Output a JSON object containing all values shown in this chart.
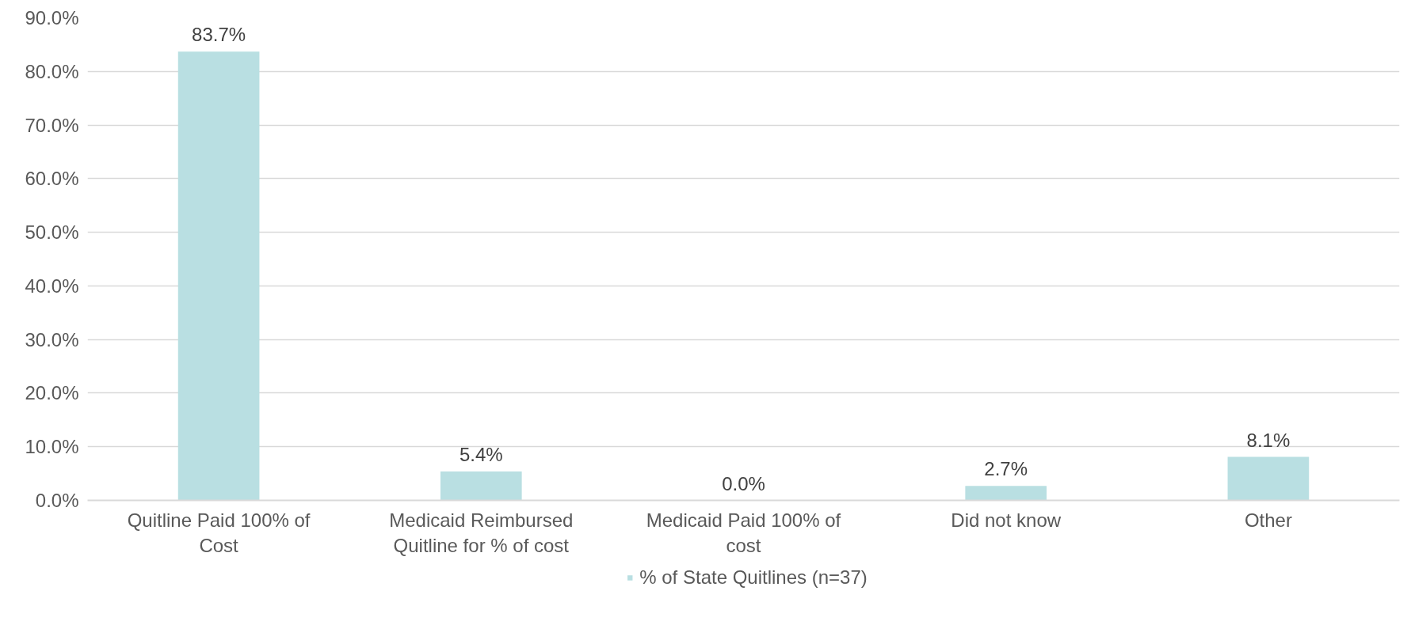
{
  "chart_data": {
    "type": "bar",
    "categories": [
      "Quitline Paid 100% of Cost",
      "Medicaid Reimbursed Quitline for % of cost",
      "Medicaid Paid 100% of cost",
      "Did not know",
      "Other"
    ],
    "series": [
      {
        "name": "% of State Quitlines (n=37)",
        "color": "#b9dfe2",
        "values": [
          83.7,
          5.4,
          0.0,
          2.7,
          8.1
        ],
        "value_labels": [
          "83.7%",
          "5.4%",
          "0.0%",
          "2.7%",
          "8.1%"
        ]
      }
    ],
    "ylim": [
      0,
      90
    ],
    "yticks": [
      {
        "value": 0,
        "label": "0.0%"
      },
      {
        "value": 10,
        "label": "10.0%"
      },
      {
        "value": 20,
        "label": "20.0%"
      },
      {
        "value": 30,
        "label": "30.0%"
      },
      {
        "value": 40,
        "label": "40.0%"
      },
      {
        "value": 50,
        "label": "50.0%"
      },
      {
        "value": 60,
        "label": "60.0%"
      },
      {
        "value": 70,
        "label": "70.0%"
      },
      {
        "value": 80,
        "label": "80.0%"
      },
      {
        "value": 90,
        "label": "90.0%"
      }
    ],
    "grid": "y",
    "legend": "bottom"
  }
}
